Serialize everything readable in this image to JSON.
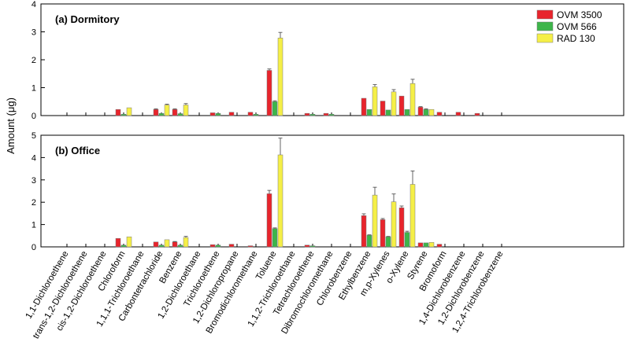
{
  "chart_data": {
    "type": "bar",
    "ylabel": "Amount (μg)",
    "legend_position": "top-right",
    "series_names": [
      "OVM 3500",
      "OVM 566",
      "RAD 130"
    ],
    "colors": {
      "OVM 3500": "#e8242c",
      "OVM 566": "#3db54a",
      "RAD 130": "#f5ef47"
    },
    "categories": [
      "1,1-Dichloroethene",
      "trans-1,2-Dichloroethene",
      "cis-1,2-Dichloroethene",
      "Chloroform",
      "1,1,1-Trichloroethane",
      "Carbontetrachloride",
      "Benzene",
      "1,2-Dichloroethane",
      "Trichloroethene",
      "1,2-Dichloropropane",
      "Bromodichloromethane",
      "Toluene",
      "1,1,2-Trichloroethane",
      "Tetrachloroethene",
      "Dibromochloromethane",
      "Chlorobenzene",
      "Ethylbenzene",
      "m,p-Xylenes",
      "o-Xylene",
      "Styrene",
      "Bromoform",
      "1,4-Dichlorobenzene",
      "1,2-Dichlorobenzene",
      "1,2,4-Trichlorobenzene"
    ],
    "panels": [
      {
        "title": "(a) Dormitory",
        "ylim": [
          0,
          4
        ],
        "yticks": [
          "0",
          "1",
          "2",
          "3",
          "4"
        ],
        "series": [
          {
            "name": "OVM 3500",
            "values": [
              0,
              0,
              0,
              0.22,
              0,
              0.22,
              0.22,
              0,
              0.1,
              0.12,
              0.12,
              1.62,
              0,
              0.08,
              0.08,
              0,
              0.62,
              0.52,
              0.7,
              0.3,
              0.12,
              0.12,
              0.08,
              0
            ],
            "errors": [
              0,
              0,
              0,
              0,
              0,
              0.02,
              0.02,
              0,
              0,
              0,
              0,
              0.05,
              0,
              0,
              0,
              0,
              0,
              0,
              0,
              0.02,
              0,
              0,
              0,
              0
            ]
          },
          {
            "name": "OVM 566",
            "values": [
              0,
              0,
              0,
              0.05,
              0,
              0.08,
              0.07,
              0,
              0.08,
              0,
              0.05,
              0.5,
              0,
              0.05,
              0.05,
              0,
              0.22,
              0.2,
              0.22,
              0.22,
              0,
              0,
              0,
              0
            ],
            "errors": [
              0,
              0,
              0,
              0,
              0,
              0,
              0,
              0,
              0,
              0,
              0,
              0.03,
              0,
              0,
              0,
              0,
              0,
              0,
              0,
              0.02,
              0,
              0,
              0,
              0
            ]
          },
          {
            "name": "RAD 130",
            "values": [
              0,
              0,
              0,
              0.28,
              0,
              0.38,
              0.38,
              0,
              0,
              0,
              0,
              2.78,
              0,
              0,
              0,
              0,
              1.03,
              0.85,
              1.15,
              0.22,
              0,
              0,
              0,
              0
            ],
            "errors": [
              0,
              0,
              0,
              0,
              0,
              0.03,
              0.05,
              0,
              0,
              0,
              0,
              0.2,
              0,
              0,
              0,
              0,
              0.08,
              0.08,
              0.15,
              0,
              0,
              0,
              0,
              0
            ]
          }
        ]
      },
      {
        "title": "(b) Office",
        "ylim": [
          0,
          5
        ],
        "yticks": [
          "0",
          "1",
          "2",
          "3",
          "4",
          "5"
        ],
        "series": [
          {
            "name": "OVM 3500",
            "values": [
              0,
              0,
              0,
              0.38,
              0,
              0.22,
              0.22,
              0,
              0.1,
              0.12,
              0.05,
              2.38,
              0,
              0.08,
              0,
              0,
              1.4,
              1.22,
              1.75,
              0.18,
              0.12,
              0,
              0,
              0
            ],
            "errors": [
              0,
              0,
              0,
              0,
              0,
              0,
              0.02,
              0,
              0,
              0,
              0,
              0.15,
              0,
              0,
              0,
              0,
              0.08,
              0.05,
              0.08,
              0,
              0,
              0,
              0,
              0
            ]
          },
          {
            "name": "OVM 566",
            "values": [
              0,
              0,
              0,
              0.08,
              0,
              0.08,
              0.08,
              0,
              0.08,
              0,
              0,
              0.82,
              0,
              0.05,
              0,
              0,
              0.52,
              0.45,
              0.65,
              0.18,
              0,
              0,
              0,
              0
            ],
            "errors": [
              0,
              0,
              0,
              0,
              0,
              0,
              0,
              0,
              0,
              0,
              0,
              0.03,
              0,
              0,
              0,
              0,
              0.02,
              0.02,
              0.05,
              0,
              0,
              0,
              0,
              0
            ]
          },
          {
            "name": "RAD 130",
            "values": [
              0,
              0,
              0,
              0.45,
              0,
              0.32,
              0.42,
              0,
              0,
              0,
              0,
              4.12,
              0,
              0,
              0,
              0,
              2.32,
              2.02,
              2.8,
              0.2,
              0,
              0,
              0,
              0
            ],
            "errors": [
              0,
              0,
              0,
              0,
              0,
              0,
              0.05,
              0,
              0,
              0,
              0,
              0.75,
              0,
              0,
              0,
              0,
              0.35,
              0.35,
              0.6,
              0,
              0,
              0,
              0,
              0
            ]
          }
        ]
      }
    ]
  }
}
